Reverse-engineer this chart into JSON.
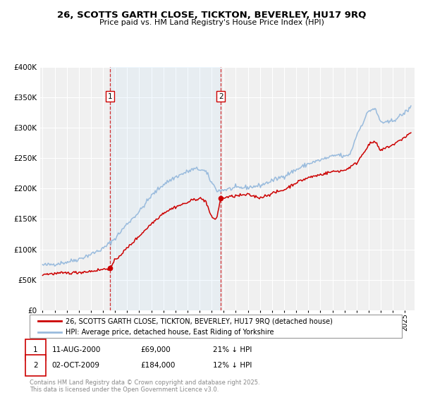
{
  "title": "26, SCOTTS GARTH CLOSE, TICKTON, BEVERLEY, HU17 9RQ",
  "subtitle": "Price paid vs. HM Land Registry's House Price Index (HPI)",
  "ylim": [
    0,
    400000
  ],
  "yticks": [
    0,
    50000,
    100000,
    150000,
    200000,
    250000,
    300000,
    350000,
    400000
  ],
  "ytick_labels": [
    "£0",
    "£50K",
    "£100K",
    "£150K",
    "£200K",
    "£250K",
    "£300K",
    "£350K",
    "£400K"
  ],
  "background_color": "#ffffff",
  "plot_bg_color": "#f0f0f0",
  "grid_color": "#ffffff",
  "property_color": "#cc0000",
  "hpi_color": "#99bbdd",
  "legend_property": "26, SCOTTS GARTH CLOSE, TICKTON, BEVERLEY, HU17 9RQ (detached house)",
  "legend_hpi": "HPI: Average price, detached house, East Riding of Yorkshire",
  "sale1_label": "1",
  "sale1_date": "11-AUG-2000",
  "sale1_price": "£69,000",
  "sale1_hpi": "21% ↓ HPI",
  "sale1_x": 2000.6,
  "sale1_y": 69000,
  "sale2_label": "2",
  "sale2_date": "02-OCT-2009",
  "sale2_price": "£184,000",
  "sale2_hpi": "12% ↓ HPI",
  "sale2_x": 2009.75,
  "sale2_y": 184000,
  "vline1_x": 2000.6,
  "vline2_x": 2009.75,
  "footer": "Contains HM Land Registry data © Crown copyright and database right 2025.\nThis data is licensed under the Open Government Licence v3.0.",
  "xlim_start": 1994.8,
  "xlim_end": 2025.8
}
